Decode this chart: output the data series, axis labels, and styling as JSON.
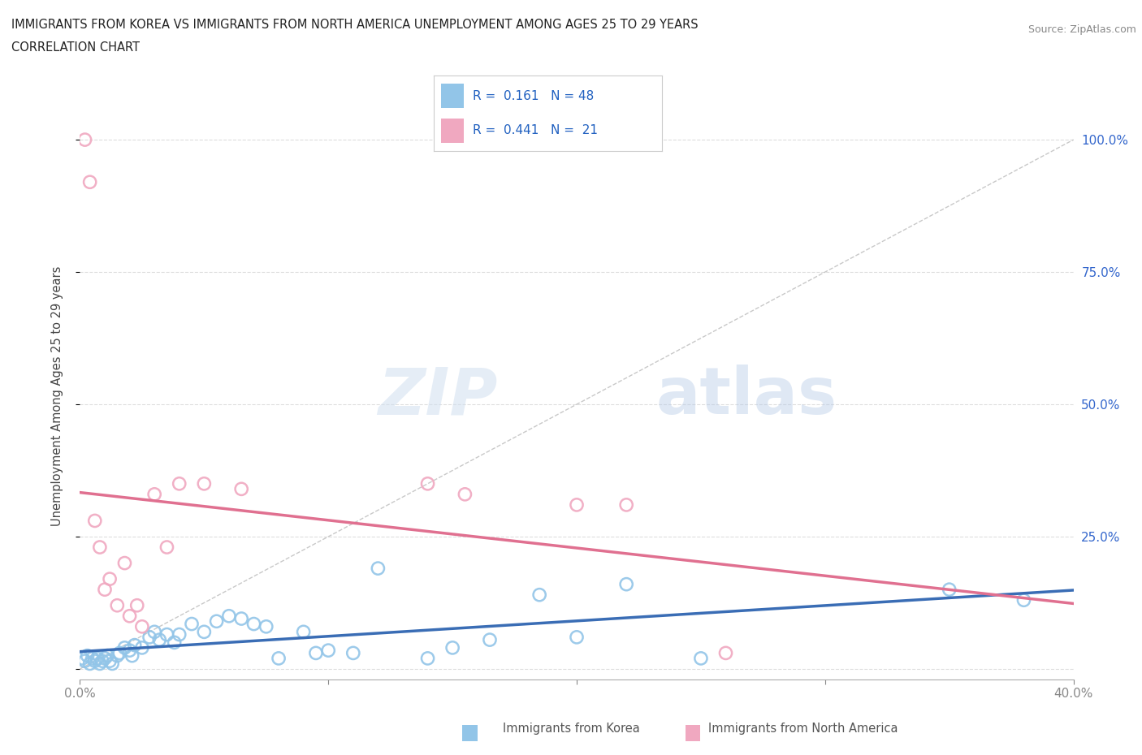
{
  "title_line1": "IMMIGRANTS FROM KOREA VS IMMIGRANTS FROM NORTH AMERICA UNEMPLOYMENT AMONG AGES 25 TO 29 YEARS",
  "title_line2": "CORRELATION CHART",
  "source": "Source: ZipAtlas.com",
  "ylabel": "Unemployment Among Ages 25 to 29 years",
  "xlim": [
    0.0,
    40.0
  ],
  "ylim": [
    -2.0,
    105.0
  ],
  "korea_color": "#92C5E8",
  "korea_color_dark": "#3A6DB5",
  "na_color": "#F0A8C0",
  "na_color_dark": "#E07090",
  "korea_R": 0.161,
  "korea_N": 48,
  "na_R": 0.441,
  "na_N": 21,
  "watermark_zip": "ZIP",
  "watermark_atlas": "atlas",
  "legend_color": "#2060C0",
  "korea_scatter_x": [
    0.1,
    0.2,
    0.3,
    0.4,
    0.5,
    0.6,
    0.7,
    0.8,
    0.9,
    1.0,
    1.1,
    1.2,
    1.3,
    1.5,
    1.6,
    1.8,
    2.0,
    2.1,
    2.2,
    2.5,
    2.8,
    3.0,
    3.2,
    3.5,
    3.8,
    4.0,
    4.5,
    5.0,
    5.5,
    6.0,
    6.5,
    7.0,
    7.5,
    8.0,
    9.0,
    9.5,
    10.0,
    11.0,
    12.0,
    14.0,
    15.0,
    16.5,
    18.5,
    20.0,
    22.0,
    25.0,
    35.0,
    38.0
  ],
  "korea_scatter_y": [
    2.0,
    1.5,
    2.5,
    1.0,
    2.0,
    1.5,
    2.0,
    1.0,
    1.5,
    2.0,
    2.5,
    1.5,
    1.0,
    2.5,
    3.0,
    4.0,
    3.5,
    2.5,
    4.5,
    4.0,
    6.0,
    7.0,
    5.5,
    6.5,
    5.0,
    6.5,
    8.5,
    7.0,
    9.0,
    10.0,
    9.5,
    8.5,
    8.0,
    2.0,
    7.0,
    3.0,
    3.5,
    3.0,
    19.0,
    2.0,
    4.0,
    5.5,
    14.0,
    6.0,
    16.0,
    2.0,
    15.0,
    13.0
  ],
  "na_scatter_x": [
    0.2,
    0.4,
    0.6,
    0.8,
    1.0,
    1.2,
    1.5,
    1.8,
    2.0,
    2.3,
    2.5,
    3.0,
    3.5,
    4.0,
    5.0,
    6.5,
    14.0,
    15.5,
    20.0,
    22.0,
    26.0
  ],
  "na_scatter_y": [
    100.0,
    92.0,
    28.0,
    23.0,
    15.0,
    17.0,
    12.0,
    20.0,
    10.0,
    12.0,
    8.0,
    33.0,
    23.0,
    35.0,
    35.0,
    34.0,
    35.0,
    33.0,
    31.0,
    31.0,
    3.0
  ],
  "grid_color": "#DDDDDD",
  "diag_color": "#BBBBBB"
}
